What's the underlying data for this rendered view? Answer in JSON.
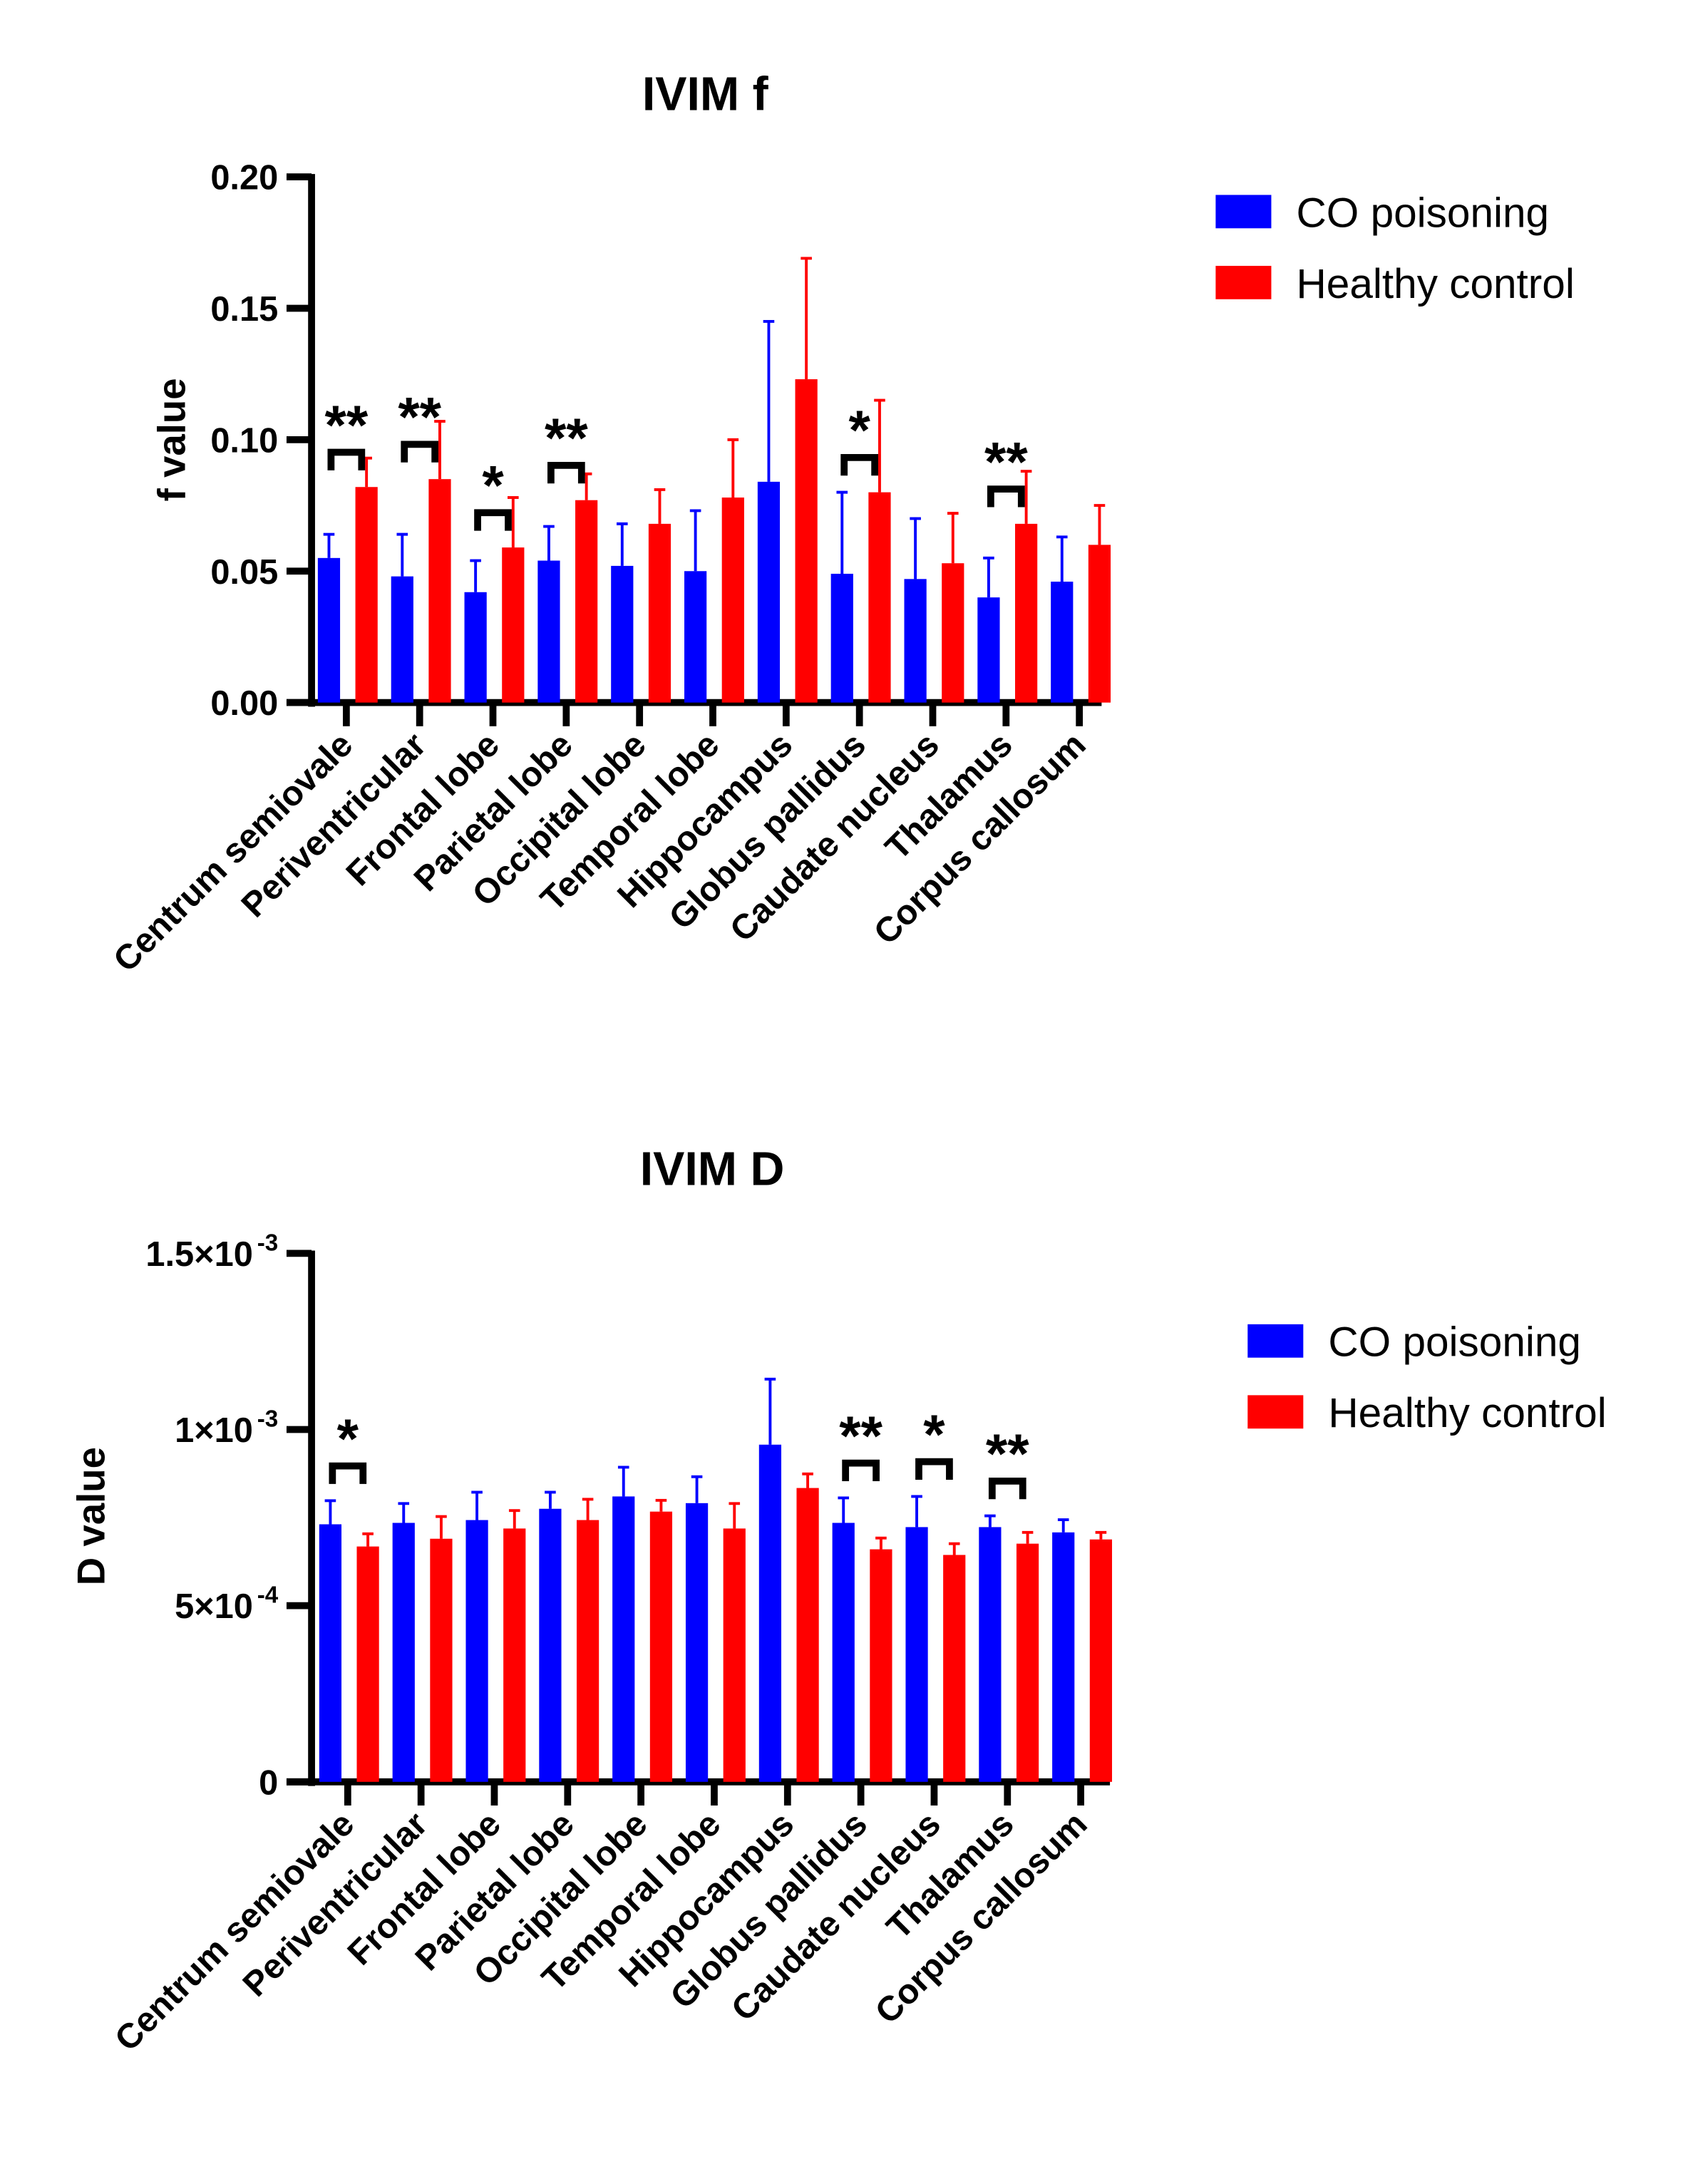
{
  "chart_data": [
    {
      "type": "bar",
      "title": "IVIM f",
      "xlabel": "",
      "ylabel": "f value",
      "ylim": [
        0,
        0.2
      ],
      "yticks": [
        0,
        0.05,
        0.1,
        0.15,
        0.2
      ],
      "ytick_labels": [
        "0.00",
        "0.05",
        "0.10",
        "0.15",
        "0.20"
      ],
      "grid": false,
      "legend_position": "top-right",
      "categories": [
        "Centrum semiovale",
        "Periventricular",
        "Frontal lobe",
        "Parietal lobe",
        "Occipital lobe",
        "Temporal lobe",
        "Hippocampus",
        "Globus pallidus",
        "Caudate nucleus",
        "Thalamus",
        "Corpus callosum"
      ],
      "series": [
        {
          "name": "CO poisoning",
          "color": "#0000ff",
          "values": [
            0.055,
            0.048,
            0.042,
            0.054,
            0.052,
            0.05,
            0.084,
            0.049,
            0.047,
            0.04,
            0.046
          ],
          "errors": [
            0.009,
            0.016,
            0.012,
            0.013,
            0.016,
            0.023,
            0.061,
            0.031,
            0.023,
            0.015,
            0.017
          ]
        },
        {
          "name": "Healthy control",
          "color": "#ff0000",
          "values": [
            0.082,
            0.085,
            0.059,
            0.077,
            0.068,
            0.078,
            0.123,
            0.08,
            0.053,
            0.068,
            0.06
          ],
          "errors": [
            0.011,
            0.022,
            0.019,
            0.01,
            0.013,
            0.022,
            0.046,
            0.035,
            0.019,
            0.02,
            0.015
          ]
        }
      ],
      "significance": [
        {
          "category_index": 0,
          "label": "**"
        },
        {
          "category_index": 1,
          "label": "**"
        },
        {
          "category_index": 2,
          "label": "*"
        },
        {
          "category_index": 3,
          "label": "**"
        },
        {
          "category_index": 7,
          "label": "*"
        },
        {
          "category_index": 9,
          "label": "**"
        }
      ]
    },
    {
      "type": "bar",
      "title": "IVIM D",
      "xlabel": "",
      "ylabel": "D value",
      "ylim": [
        0,
        0.0015
      ],
      "yticks": [
        0,
        0.0005,
        0.001,
        0.0015
      ],
      "ytick_labels": [
        {
          "mantissa": "0",
          "exponent": ""
        },
        {
          "mantissa": "5×10",
          "exponent": "-4"
        },
        {
          "mantissa": "1×10",
          "exponent": "-3"
        },
        {
          "mantissa": "1.5×10",
          "exponent": "-3"
        }
      ],
      "grid": false,
      "legend_position": "right",
      "categories": [
        "Centrum semiovale",
        "Periventricular",
        "Frontal lobe",
        "Parietal lobe",
        "Occipital lobe",
        "Temporal lobe",
        "Hippocampus",
        "Globus pallidus",
        "Caudate nucleus",
        "Thalamus",
        "Corpus callosum"
      ],
      "series": [
        {
          "name": "CO poisoning",
          "color": "#0000ff",
          "values": [
            0.000731,
            0.000735,
            0.000743,
            0.000775,
            0.00081,
            0.000791,
            0.000957,
            0.000735,
            0.000723,
            0.000723,
            0.000708
          ],
          "errors": [
            6.7e-05,
            5.5e-05,
            7.9e-05,
            4.7e-05,
            8.3e-05,
            7.5e-05,
            0.000186,
            7.1e-05,
            8.7e-05,
            3.2e-05,
            3.6e-05
          ]
        },
        {
          "name": "Healthy control",
          "color": "#ff0000",
          "values": [
            0.000668,
            0.00069,
            0.000719,
            0.000743,
            0.000767,
            0.000719,
            0.000834,
            0.00066,
            0.000644,
            0.000676,
            0.000688
          ],
          "errors": [
            3.6e-05,
            6.3e-05,
            5.1e-05,
            5.9e-05,
            3.2e-05,
            7.1e-05,
            4e-05,
            3.2e-05,
            3.2e-05,
            3.2e-05,
            2e-05
          ]
        }
      ],
      "significance": [
        {
          "category_index": 0,
          "label": "*"
        },
        {
          "category_index": 7,
          "label": "**"
        },
        {
          "category_index": 8,
          "label": "*"
        },
        {
          "category_index": 9,
          "label": "**"
        }
      ]
    }
  ]
}
